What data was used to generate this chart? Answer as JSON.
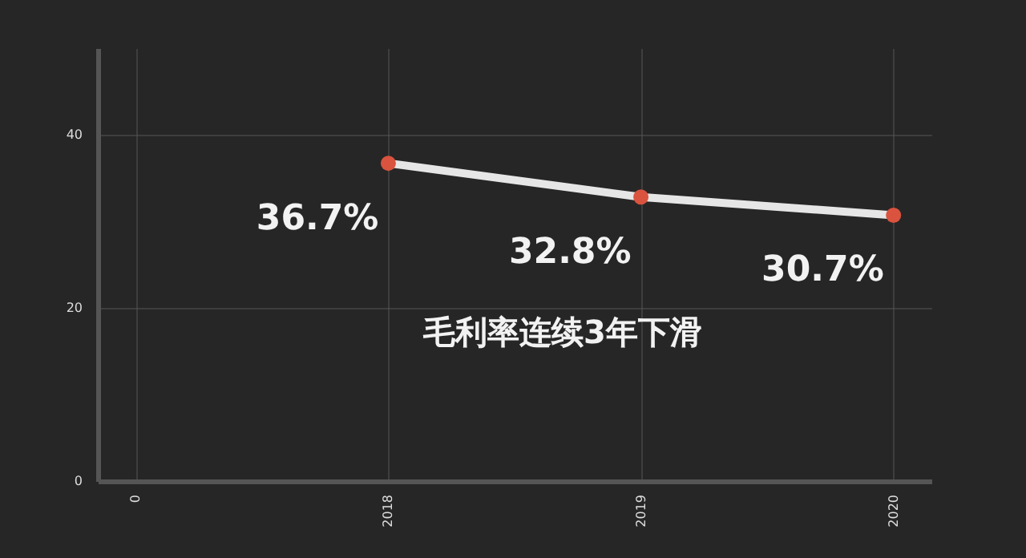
{
  "chart_data": {
    "type": "line",
    "categories": [
      "0",
      "2018",
      "2019",
      "2020"
    ],
    "series": [
      {
        "color": "#e6e6e6",
        "values": [
          null,
          36.7,
          32.8,
          30.7
        ],
        "value_labels": [
          null,
          "36.7%",
          "32.8%",
          "30.7%"
        ]
      }
    ],
    "ylim": [
      0,
      50
    ],
    "yticks": [
      0,
      20,
      40
    ],
    "grid": true,
    "marker": "circle",
    "annotations": [
      "毛利率连续3年下滑"
    ]
  }
}
